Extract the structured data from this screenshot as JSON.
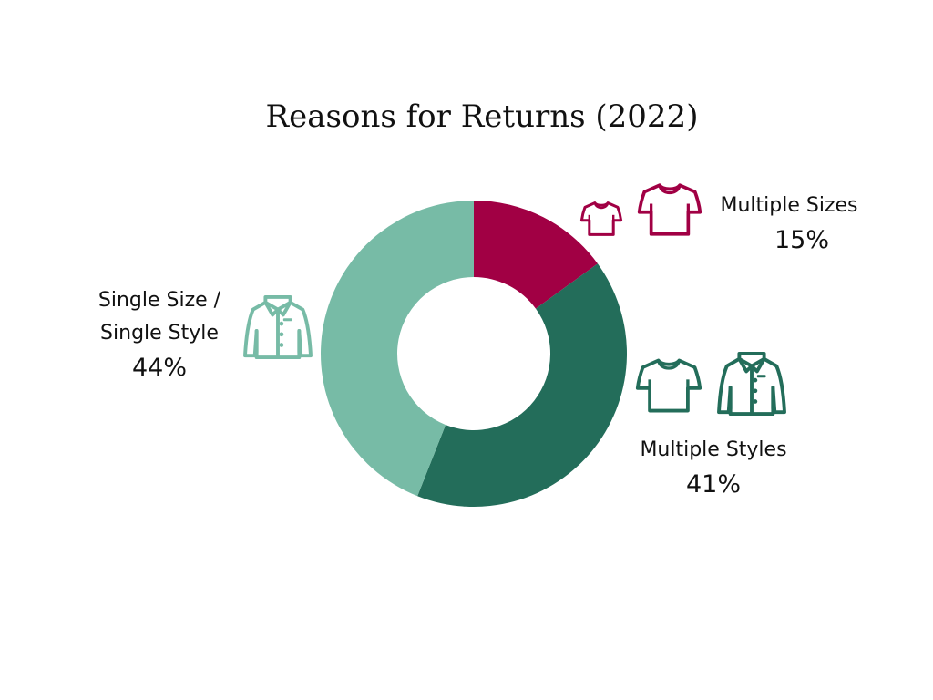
{
  "chart_data": {
    "type": "pie",
    "title": "Reasons for Returns (2022)",
    "donut": true,
    "slices": [
      {
        "label": "Multiple Sizes",
        "value": 15,
        "value_label": "15%",
        "color": "#a10044"
      },
      {
        "label": "Multiple Styles",
        "value": 41,
        "value_label": "41%",
        "color": "#236d5a"
      },
      {
        "label_lines": [
          "Single Size /",
          "Single Style"
        ],
        "value": 44,
        "value_label": "44%",
        "color": "#77bba6"
      }
    ]
  },
  "icons": {
    "multiple_sizes": [
      "small-tshirt-icon",
      "large-tshirt-icon"
    ],
    "multiple_styles": [
      "tshirt-icon",
      "dress-shirt-icon"
    ],
    "single": [
      "dress-shirt-icon"
    ]
  }
}
